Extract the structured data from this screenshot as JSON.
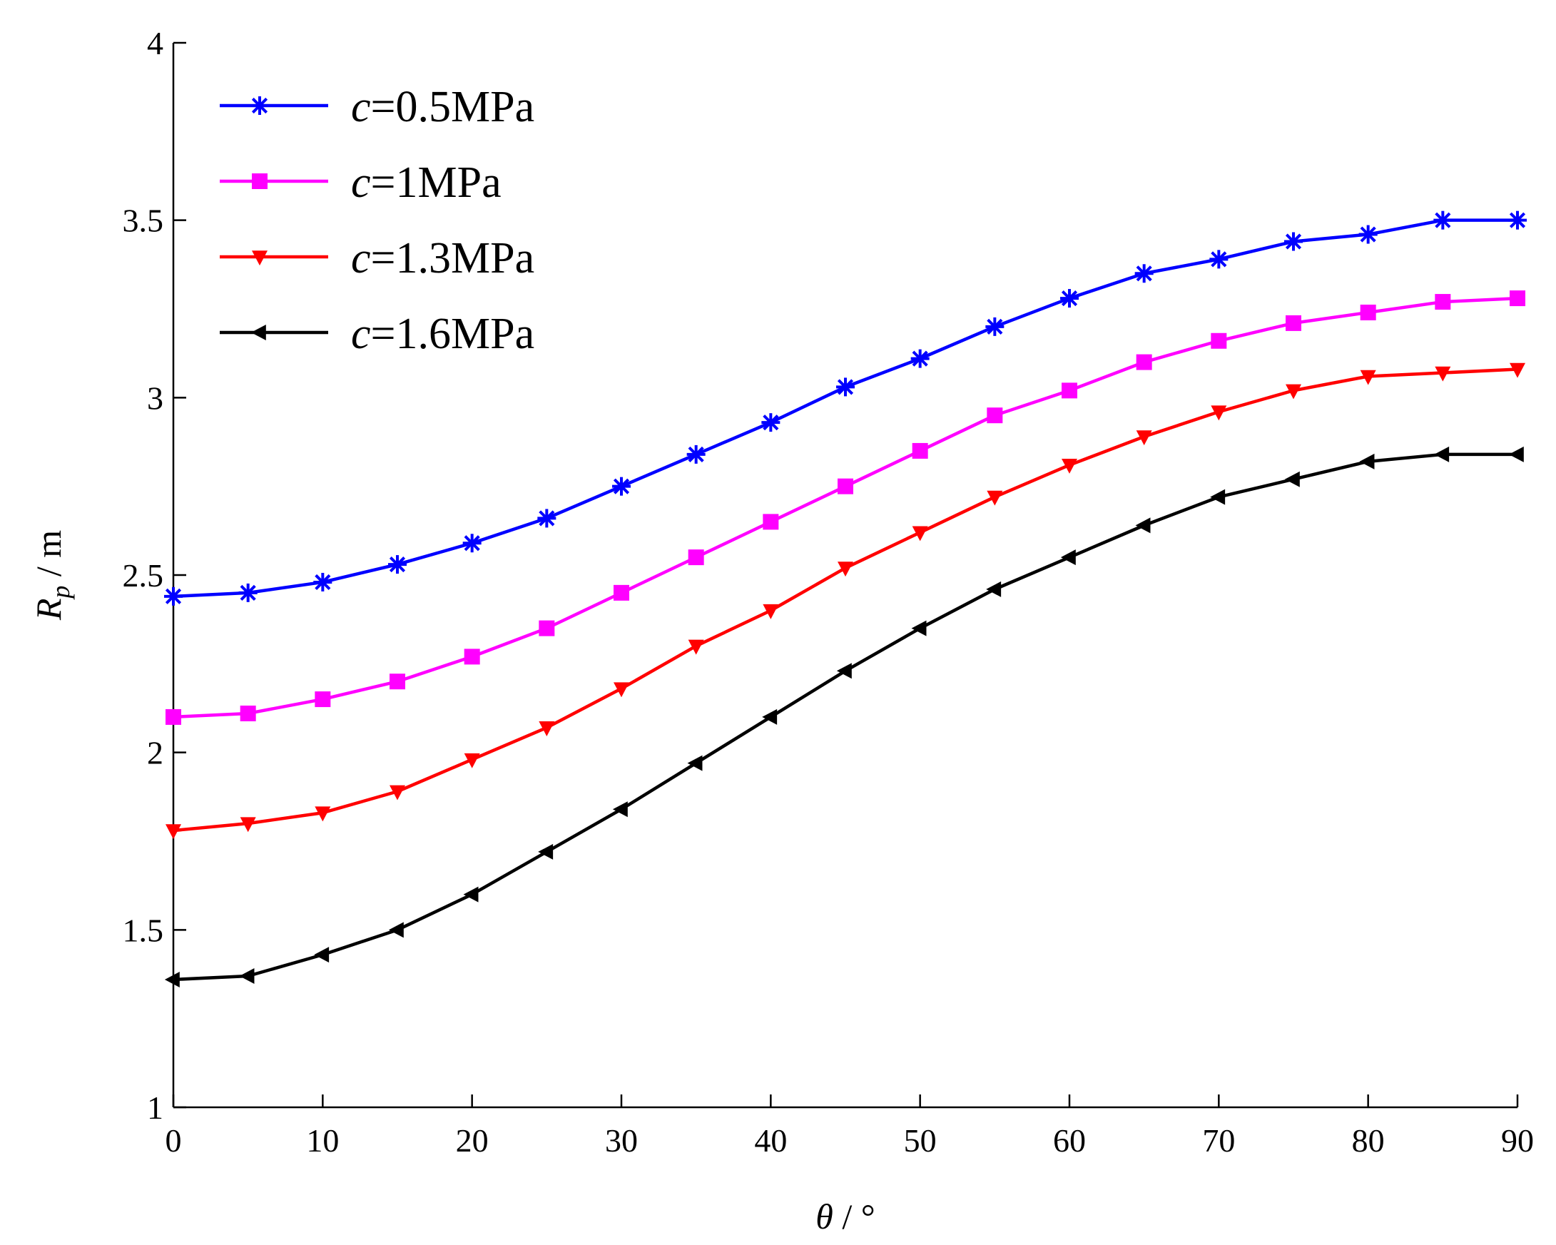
{
  "chart_data": {
    "type": "line",
    "title": "",
    "xlabel": {
      "symbol": "θ",
      "unit": " / °"
    },
    "ylabel": {
      "symbol": "R",
      "subscript": "p",
      "unit": " / m"
    },
    "xlim": [
      0,
      90
    ],
    "ylim": [
      1,
      4
    ],
    "x_ticks": [
      0,
      10,
      20,
      30,
      40,
      50,
      60,
      70,
      80,
      90
    ],
    "y_ticks": [
      1,
      1.5,
      2,
      2.5,
      3,
      3.5,
      4
    ],
    "y_tick_labels": [
      "1",
      "1.5",
      "2",
      "2.5",
      "3",
      "3.5",
      "4"
    ],
    "grid": false,
    "legend_position": "top-left",
    "x": [
      0,
      5,
      10,
      15,
      20,
      25,
      30,
      35,
      40,
      45,
      50,
      55,
      60,
      65,
      70,
      75,
      80,
      85,
      90
    ],
    "series": [
      {
        "name": "c=0.5MPa",
        "legend_var": "c",
        "legend_rest": "=0.5MPa",
        "color": "#0000ff",
        "marker": "asterisk",
        "values": [
          2.44,
          2.45,
          2.48,
          2.53,
          2.59,
          2.66,
          2.75,
          2.84,
          2.93,
          3.03,
          3.11,
          3.2,
          3.28,
          3.35,
          3.39,
          3.44,
          3.46,
          3.5,
          3.5
        ]
      },
      {
        "name": "c=1MPa",
        "legend_var": "c",
        "legend_rest": "=1MPa",
        "color": "#ff00ff",
        "marker": "square",
        "values": [
          2.1,
          2.11,
          2.15,
          2.2,
          2.27,
          2.35,
          2.45,
          2.55,
          2.65,
          2.75,
          2.85,
          2.95,
          3.02,
          3.1,
          3.16,
          3.21,
          3.24,
          3.27,
          3.28
        ]
      },
      {
        "name": "c=1.3MPa",
        "legend_var": "c",
        "legend_rest": "=1.3MPa",
        "color": "#ff0000",
        "marker": "triangle-down",
        "values": [
          1.78,
          1.8,
          1.83,
          1.89,
          1.98,
          2.07,
          2.18,
          2.3,
          2.4,
          2.52,
          2.62,
          2.72,
          2.81,
          2.89,
          2.96,
          3.02,
          3.06,
          3.07,
          3.08
        ]
      },
      {
        "name": "c=1.6MPa",
        "legend_var": "c",
        "legend_rest": "=1.6MPa",
        "color": "#000000",
        "marker": "triangle-left",
        "values": [
          1.36,
          1.37,
          1.43,
          1.5,
          1.6,
          1.72,
          1.84,
          1.97,
          2.1,
          2.23,
          2.35,
          2.46,
          2.55,
          2.64,
          2.72,
          2.77,
          2.82,
          2.84,
          2.84
        ]
      }
    ]
  }
}
